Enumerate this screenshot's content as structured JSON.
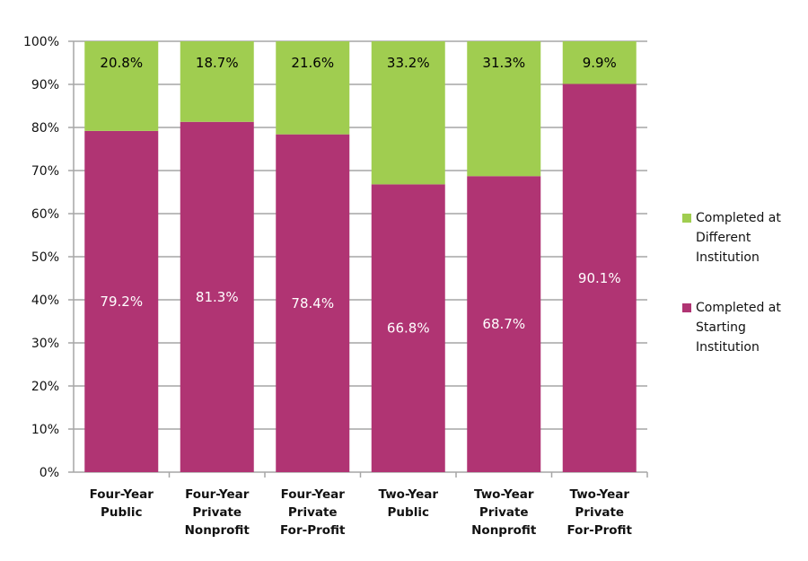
{
  "chart_data": {
    "type": "bar",
    "stacked": true,
    "categories": [
      [
        "Four-Year",
        "Public"
      ],
      [
        "Four-Year",
        "Private",
        "Nonprofit"
      ],
      [
        "Four-Year",
        "Private",
        "For-Profit"
      ],
      [
        "Two-Year",
        "Public"
      ],
      [
        "Two-Year",
        "Private",
        "Nonprofit"
      ],
      [
        "Two-Year",
        "Private",
        "For-Profit"
      ]
    ],
    "series": [
      {
        "name": "Completed at Starting Institution",
        "color": "#b03473",
        "values": [
          79.2,
          81.3,
          78.4,
          66.8,
          68.7,
          90.1
        ],
        "labels": [
          "79.2%",
          "81.3%",
          "78.4%",
          "66.8%",
          "68.7%",
          "90.1%"
        ],
        "label_color": "#ffffff"
      },
      {
        "name": "Completed at Different Institution",
        "color": "#a0cd50",
        "values": [
          20.8,
          18.7,
          21.6,
          33.2,
          31.3,
          9.9
        ],
        "labels": [
          "20.8%",
          "18.7%",
          "21.6%",
          "33.2%",
          "31.3%",
          "9.9%"
        ],
        "label_color": "#000000"
      }
    ],
    "ylim": [
      0,
      100
    ],
    "yticks": [
      "0%",
      "10%",
      "20%",
      "30%",
      "40%",
      "50%",
      "60%",
      "70%",
      "80%",
      "90%",
      "100%"
    ],
    "grid": true,
    "legend_position": "right",
    "legend": [
      "Completed at Different Institution",
      "Completed at Starting Institution"
    ]
  }
}
